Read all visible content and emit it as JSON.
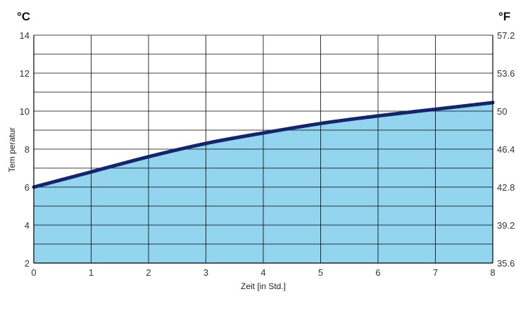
{
  "chart_data": {
    "type": "area",
    "xlabel": "Zeit [in Std.]",
    "ylabel": "Tem peratur",
    "unit_left": "°C",
    "unit_right": "°F",
    "xlim": [
      0,
      8
    ],
    "ylim": [
      2,
      14
    ],
    "ylim_right": [
      35.6,
      57.2
    ],
    "x_ticks": [
      "0",
      "1",
      "2",
      "3",
      "4",
      "5",
      "6",
      "7",
      "8"
    ],
    "y_ticks_left": [
      "2",
      "4",
      "6",
      "8",
      "10",
      "12",
      "14"
    ],
    "y_ticks_right": [
      "35.6",
      "39.2",
      "42.8",
      "46.4",
      "50",
      "53.6",
      "57.2"
    ],
    "grid": true,
    "series": [
      {
        "x": [
          0,
          1,
          2,
          3,
          4,
          5,
          6,
          7,
          8
        ],
        "values": [
          6.0,
          6.8,
          7.6,
          8.3,
          8.85,
          9.35,
          9.75,
          10.1,
          10.45
        ]
      }
    ],
    "colors": {
      "fill": "#93d4ee",
      "line": "#14246e",
      "grid": "#000000"
    }
  }
}
